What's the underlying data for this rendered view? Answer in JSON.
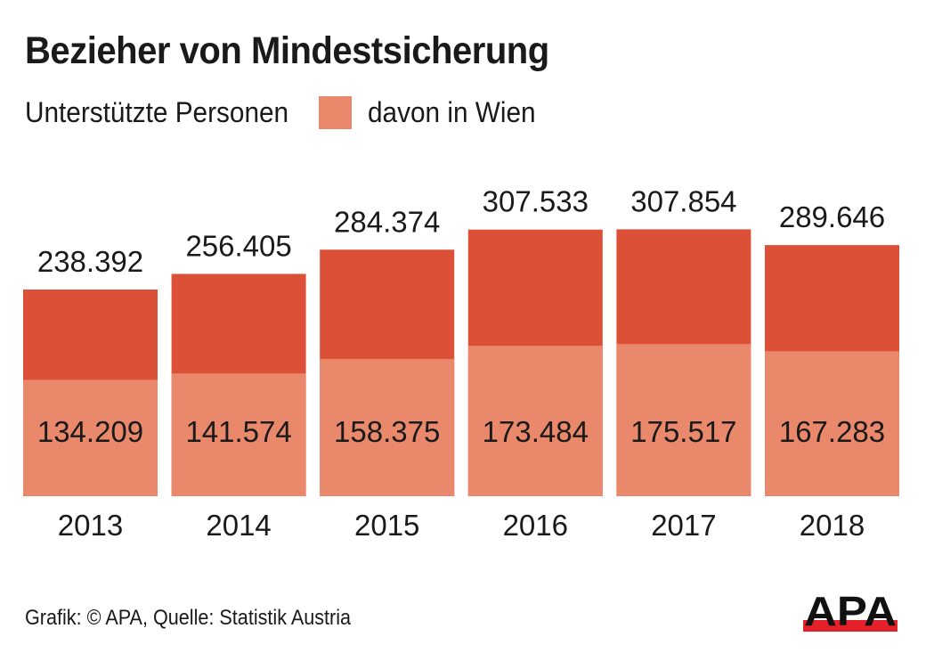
{
  "colors": {
    "total": "#dc5038",
    "vienna": "#e9886b",
    "text": "#1a1a1a",
    "logo_red": "#e4202a",
    "logo_black": "#111111"
  },
  "footer": {
    "source": "Grafik: © APA, Quelle: Statistik Austria"
  },
  "logo": {
    "text": "APA"
  },
  "chart_data": {
    "type": "bar",
    "title": "Bezieher von Mindestsicherung",
    "xlabel": "",
    "ylabel": "",
    "grid": false,
    "legend": "top-left",
    "ylim": [
      0,
      320000
    ],
    "categories": [
      "2013",
      "2014",
      "2015",
      "2016",
      "2017",
      "2018"
    ],
    "series": [
      {
        "name": "Unterstützte Personen",
        "values": [
          238392,
          256405,
          284374,
          307533,
          307854,
          289646
        ],
        "labels": [
          "238.392",
          "256.405",
          "284.374",
          "307.533",
          "307.854",
          "289.646"
        ]
      },
      {
        "name": "davon in Wien",
        "values": [
          134209,
          141574,
          158375,
          173484,
          175517,
          167283
        ],
        "labels": [
          "134.209",
          "141.574",
          "158.375",
          "173.484",
          "175.517",
          "167.283"
        ]
      }
    ]
  }
}
